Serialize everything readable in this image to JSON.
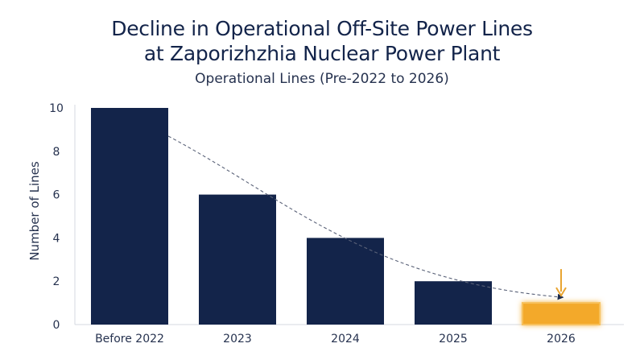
{
  "chart_data": {
    "type": "bar",
    "title_line1": "Decline in Operational Off-Site Power Lines",
    "title_line2": "at Zaporizhzhia Nuclear Power Plant",
    "subtitle": "Operational Lines (Pre-2022 to 2026)",
    "xlabel": "",
    "ylabel": "Number of Lines",
    "categories": [
      "Before 2022",
      "2023",
      "2024",
      "2025",
      "2026"
    ],
    "values": [
      10,
      6,
      4,
      2,
      1
    ],
    "ylim": [
      0,
      10
    ],
    "yticks": [
      0,
      2,
      4,
      6,
      8,
      10
    ],
    "grid": false,
    "trend_line": "dashed curve from first to last bar",
    "colors": {
      "bar": "#13244a",
      "highlight_bar": "#f3a92b",
      "highlight_glow": "#f7c15c",
      "arrow": "#e9a531",
      "trend": "#5a6278"
    },
    "highlight_index": 4
  }
}
